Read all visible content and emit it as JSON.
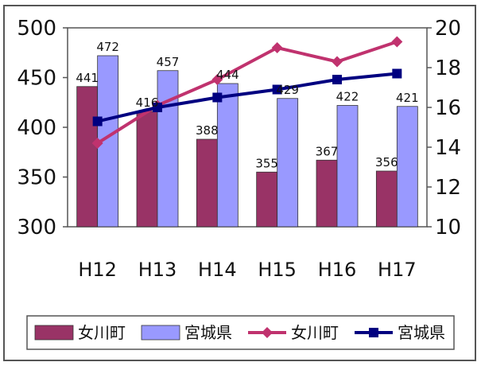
{
  "chart_data": {
    "type": "bar",
    "categories": [
      "H12",
      "H13",
      "H14",
      "H15",
      "H16",
      "H17"
    ],
    "ylim": [
      300,
      500
    ],
    "y_ticks": [
      300,
      350,
      400,
      450,
      500
    ],
    "y2lim": [
      10,
      20
    ],
    "y2_ticks": [
      10,
      12,
      14,
      16,
      18,
      20
    ],
    "grid": false,
    "legend_position": "bottom",
    "series": [
      {
        "name": "女川町",
        "kind": "bar",
        "axis": "left",
        "color": "#993366",
        "values": [
          441,
          416,
          388,
          355,
          367,
          356
        ]
      },
      {
        "name": "宮城県",
        "kind": "bar",
        "axis": "left",
        "color": "#9999ff",
        "values": [
          472,
          457,
          444,
          429,
          422,
          421
        ]
      },
      {
        "name": "女川町",
        "kind": "line",
        "axis": "right",
        "color": "#c0326e",
        "marker": "diamond",
        "values": [
          14.2,
          16.1,
          17.4,
          19.0,
          18.3,
          19.3
        ]
      },
      {
        "name": "宮城県",
        "kind": "line",
        "axis": "right",
        "color": "#000080",
        "marker": "square",
        "values": [
          15.3,
          16.0,
          16.5,
          16.9,
          17.4,
          17.7
        ]
      }
    ],
    "data_labels": {
      "女川町_bar": [
        "441",
        "416",
        "388",
        "355",
        "367",
        "356"
      ],
      "宮城県_bar": [
        "472",
        "457",
        "444",
        "429",
        "422",
        "421"
      ]
    }
  }
}
